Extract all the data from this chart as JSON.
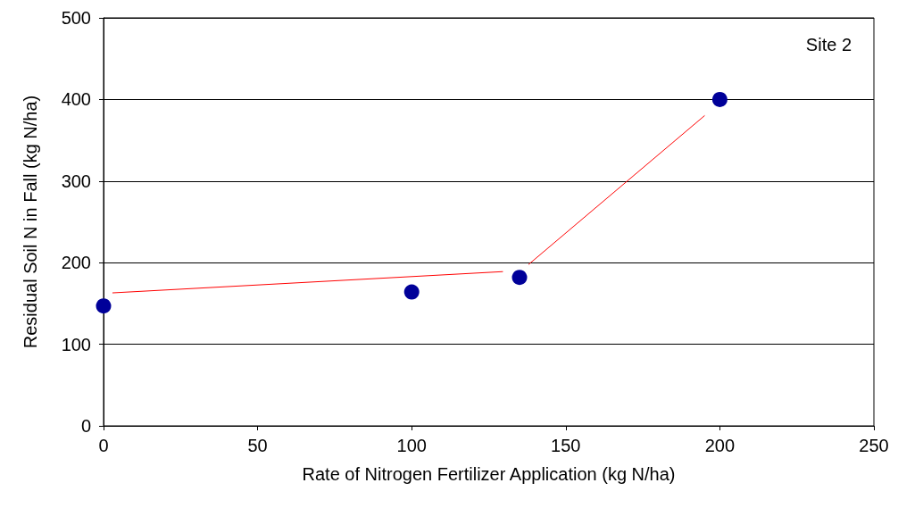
{
  "chart_data": {
    "type": "scatter",
    "xlabel": "Rate of Nitrogen Fertilizer Application (kg N/ha)",
    "ylabel": "Residual Soil N in Fall (kg N/ha)",
    "annotations": [
      "Site 2"
    ],
    "xlim": [
      0,
      250
    ],
    "xticks": [
      0,
      50,
      100,
      150,
      200,
      250
    ],
    "ylim": [
      0,
      500
    ],
    "yticks": [
      0,
      100,
      200,
      300,
      400,
      500
    ],
    "grid": "y",
    "marker": "circle",
    "series": [
      {
        "color": "#000099",
        "x": [
          0,
          100,
          135,
          200
        ],
        "values": [
          147,
          164,
          182,
          400
        ]
      },
      {
        "type": "line",
        "color": "#ff0000",
        "marker": "none",
        "line_style": "solid",
        "x": [
          3,
          129.5
        ],
        "values": [
          163,
          189
        ]
      },
      {
        "type": "line",
        "color": "#ff0000",
        "marker": "none",
        "line_style": "solid",
        "x": [
          138,
          195
        ],
        "values": [
          198,
          380
        ]
      }
    ]
  }
}
